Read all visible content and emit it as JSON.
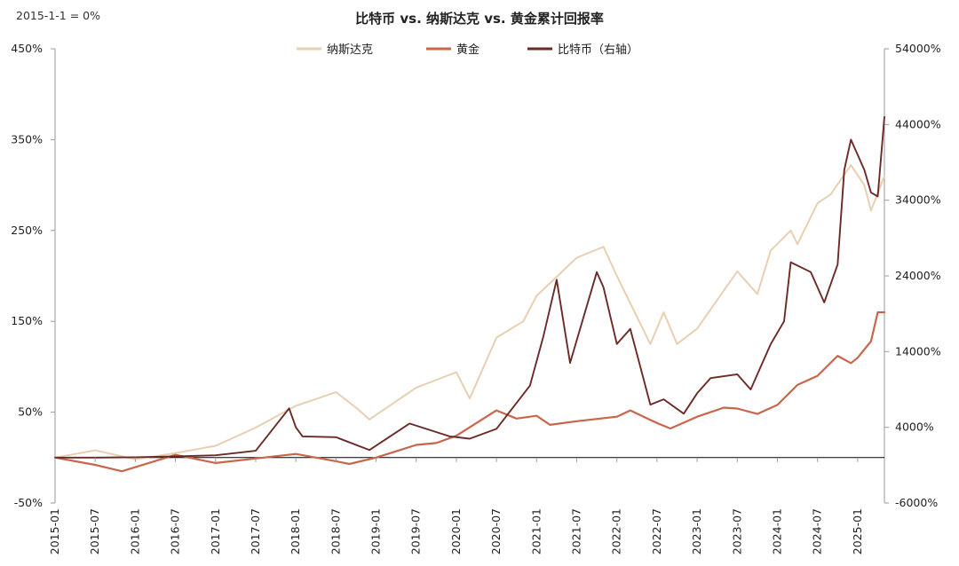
{
  "chart_data": {
    "type": "line",
    "title": "比特币 vs. 纳斯达克 vs. 黄金累计回报率",
    "note": "2015-1-1 = 0%",
    "colors": {
      "nasdaq": "#e8cfb1",
      "gold": "#c9654a",
      "bitcoin": "#6b2a26",
      "axis": "#9a9a9a"
    },
    "legend": [
      "纳斯达克",
      "黄金",
      "比特币（右轴）"
    ],
    "legend_position": "top-center",
    "grid": false,
    "y_left": {
      "ticks": [
        "450%",
        "350%",
        "250%",
        "150%",
        "50%",
        "-50%"
      ],
      "min": -50,
      "max": 450,
      "unit": "%"
    },
    "y_right": {
      "ticks": [
        "54000%",
        "44000%",
        "34000%",
        "24000%",
        "14000%",
        "4000%",
        "-6000%"
      ],
      "min": -6000,
      "max": 54000,
      "unit": "%"
    },
    "x_ticks": [
      "2015-01",
      "2015-07",
      "2016-01",
      "2016-07",
      "2017-01",
      "2017-07",
      "2018-01",
      "2018-07",
      "2019-01",
      "2019-07",
      "2020-01",
      "2020-07",
      "2021-01",
      "2021-07",
      "2022-01",
      "2022-07",
      "2023-01",
      "2023-07",
      "2024-01",
      "2024-07",
      "2025-01"
    ],
    "series": [
      {
        "name": "纳斯达克",
        "axis": "left",
        "color": "#e8cfb1",
        "points": [
          [
            "2015-01",
            0
          ],
          [
            "2015-07",
            8
          ],
          [
            "2016-01",
            -2
          ],
          [
            "2016-07",
            5
          ],
          [
            "2017-01",
            13
          ],
          [
            "2017-07",
            33
          ],
          [
            "2018-01",
            57
          ],
          [
            "2018-07",
            72
          ],
          [
            "2018-10",
            55
          ],
          [
            "2018-12",
            42
          ],
          [
            "2019-07",
            77
          ],
          [
            "2020-01",
            94
          ],
          [
            "2020-03",
            65
          ],
          [
            "2020-07",
            132
          ],
          [
            "2020-11",
            150
          ],
          [
            "2021-01",
            178
          ],
          [
            "2021-07",
            220
          ],
          [
            "2021-11",
            232
          ],
          [
            "2022-01",
            200
          ],
          [
            "2022-06",
            125
          ],
          [
            "2022-08",
            160
          ],
          [
            "2022-10",
            125
          ],
          [
            "2023-01",
            142
          ],
          [
            "2023-07",
            205
          ],
          [
            "2023-10",
            180
          ],
          [
            "2023-12",
            228
          ],
          [
            "2024-03",
            250
          ],
          [
            "2024-04",
            235
          ],
          [
            "2024-07",
            280
          ],
          [
            "2024-09",
            290
          ],
          [
            "2024-12",
            322
          ],
          [
            "2025-02",
            300
          ],
          [
            "2025-03",
            272
          ],
          [
            "2025-05",
            310
          ]
        ]
      },
      {
        "name": "黄金",
        "axis": "left",
        "color": "#c9654a",
        "points": [
          [
            "2015-01",
            0
          ],
          [
            "2015-07",
            -8
          ],
          [
            "2015-11",
            -15
          ],
          [
            "2016-07",
            3
          ],
          [
            "2017-01",
            -6
          ],
          [
            "2017-07",
            -1
          ],
          [
            "2018-01",
            4
          ],
          [
            "2018-07",
            -4
          ],
          [
            "2018-09",
            -7
          ],
          [
            "2019-01",
            0
          ],
          [
            "2019-07",
            14
          ],
          [
            "2019-10",
            16
          ],
          [
            "2020-01",
            24
          ],
          [
            "2020-07",
            52
          ],
          [
            "2020-10",
            43
          ],
          [
            "2021-01",
            46
          ],
          [
            "2021-03",
            36
          ],
          [
            "2021-07",
            40
          ],
          [
            "2022-01",
            45
          ],
          [
            "2022-03",
            52
          ],
          [
            "2022-07",
            38
          ],
          [
            "2022-09",
            32
          ],
          [
            "2023-01",
            45
          ],
          [
            "2023-05",
            55
          ],
          [
            "2023-07",
            54
          ],
          [
            "2023-10",
            48
          ],
          [
            "2024-01",
            58
          ],
          [
            "2024-04",
            80
          ],
          [
            "2024-07",
            90
          ],
          [
            "2024-10",
            112
          ],
          [
            "2024-12",
            104
          ],
          [
            "2025-01",
            110
          ],
          [
            "2025-03",
            128
          ],
          [
            "2025-04",
            160
          ],
          [
            "2025-05",
            160
          ]
        ]
      },
      {
        "name": "比特币（右轴）",
        "axis": "right",
        "color": "#6b2a26",
        "points": [
          [
            "2015-01",
            0
          ],
          [
            "2015-07",
            0
          ],
          [
            "2016-01",
            50
          ],
          [
            "2016-07",
            150
          ],
          [
            "2017-01",
            300
          ],
          [
            "2017-07",
            900
          ],
          [
            "2017-12",
            6500
          ],
          [
            "2018-01",
            4000
          ],
          [
            "2018-02",
            2800
          ],
          [
            "2018-07",
            2700
          ],
          [
            "2018-12",
            1000
          ],
          [
            "2019-06",
            4500
          ],
          [
            "2019-12",
            2800
          ],
          [
            "2020-03",
            2500
          ],
          [
            "2020-07",
            3800
          ],
          [
            "2020-12",
            9500
          ],
          [
            "2021-02",
            16000
          ],
          [
            "2021-04",
            23500
          ],
          [
            "2021-06",
            12500
          ],
          [
            "2021-10",
            24500
          ],
          [
            "2021-11",
            22500
          ],
          [
            "2022-01",
            15000
          ],
          [
            "2022-03",
            17000
          ],
          [
            "2022-06",
            7000
          ],
          [
            "2022-08",
            7700
          ],
          [
            "2022-11",
            5800
          ],
          [
            "2023-01",
            8500
          ],
          [
            "2023-03",
            10500
          ],
          [
            "2023-07",
            11000
          ],
          [
            "2023-09",
            9000
          ],
          [
            "2023-12",
            15000
          ],
          [
            "2024-02",
            18000
          ],
          [
            "2024-03",
            25800
          ],
          [
            "2024-06",
            24500
          ],
          [
            "2024-08",
            20500
          ],
          [
            "2024-10",
            25500
          ],
          [
            "2024-11",
            38000
          ],
          [
            "2024-12",
            42000
          ],
          [
            "2025-02",
            38000
          ],
          [
            "2025-03",
            35000
          ],
          [
            "2025-04",
            34500
          ],
          [
            "2025-05",
            45000
          ]
        ]
      }
    ]
  }
}
